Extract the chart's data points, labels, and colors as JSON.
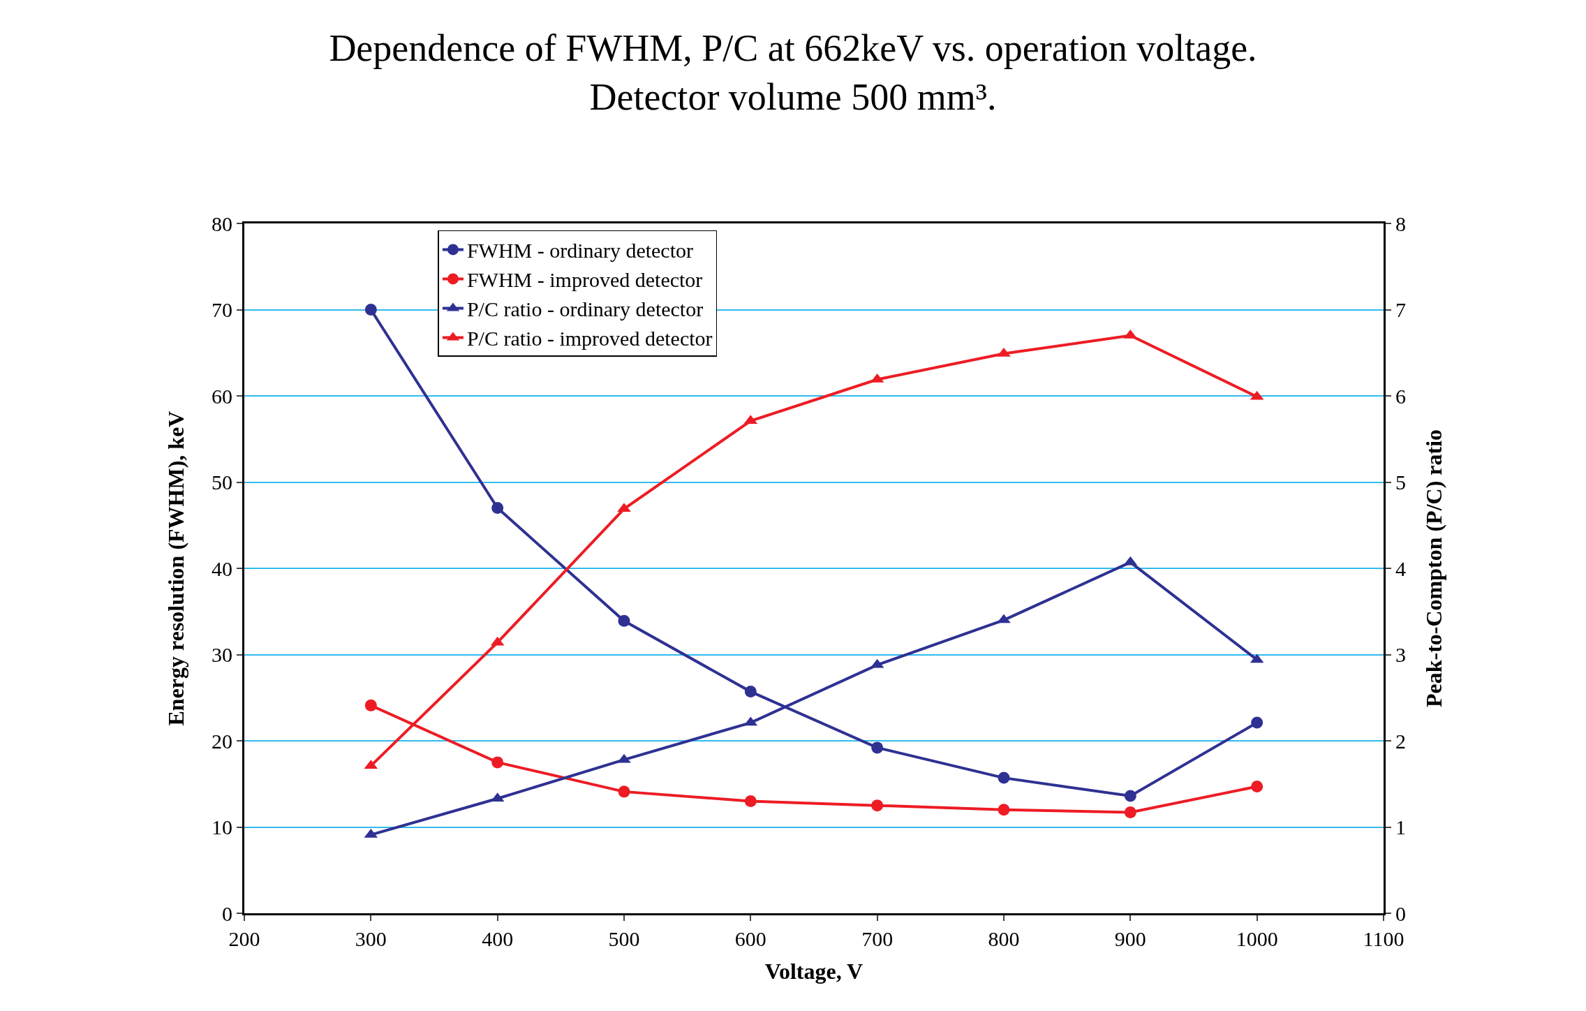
{
  "chart_data": {
    "type": "line",
    "title": "Dependence of FWHM, P/C at 662keV vs. operation voltage.\nDetector volume 500 mm³.",
    "xlabel": "Voltage, V",
    "ylabel": "Energy resolution (FWHM), keV",
    "y2label": "Peak-to-Compton (P/C) ratio",
    "x": [
      300,
      400,
      500,
      600,
      700,
      800,
      900,
      1000
    ],
    "series": [
      {
        "name": "FWHM - ordinary detector",
        "color": "#2e3192",
        "marker": "circle",
        "values": [
          70,
          47.0,
          33.9,
          25.7,
          19.2,
          15.7,
          13.6,
          22.1
        ]
      },
      {
        "name": "FWHM - improved detector",
        "color": "#ed1c24",
        "marker": "circle",
        "values": [
          24.1,
          17.5,
          14.1,
          13.0,
          12.5,
          12.0,
          11.7,
          14.7
        ]
      },
      {
        "name": "P/C ratio - ordinary detector",
        "color": "#2e3192",
        "marker": "triangle",
        "axis": "y2",
        "values": [
          0.91,
          1.33,
          1.78,
          2.21,
          2.88,
          3.4,
          4.07,
          2.94
        ]
      },
      {
        "name": "P/C ratio - improved detector",
        "color": "#ed1c24",
        "marker": "triangle",
        "axis": "y2",
        "values": [
          1.71,
          3.14,
          4.69,
          5.71,
          6.19,
          6.49,
          6.7,
          5.99
        ]
      }
    ],
    "xlim": [
      200,
      1100
    ],
    "xticks": [
      200,
      300,
      400,
      500,
      600,
      700,
      800,
      900,
      1000,
      1100
    ],
    "ylim": [
      0,
      80
    ],
    "yticks": [
      0,
      10,
      20,
      30,
      40,
      50,
      60,
      70,
      80
    ],
    "y2lim": [
      0,
      8
    ],
    "y2ticks": [
      0,
      1,
      2,
      3,
      4,
      5,
      6,
      7,
      8
    ],
    "grid": "y",
    "legend": "top left",
    "line_style": "solid"
  }
}
